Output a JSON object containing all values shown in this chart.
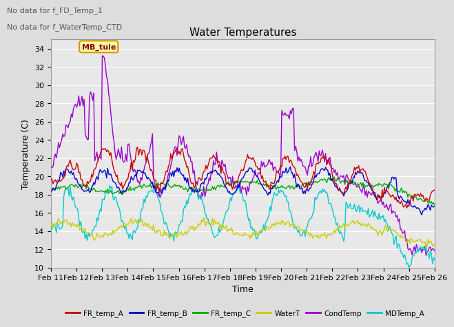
{
  "title": "Water Temperatures",
  "xlabel": "Time",
  "ylabel": "Temperature (C)",
  "annotations": [
    "No data for f_FD_Temp_1",
    "No data for f_WaterTemp_CTD"
  ],
  "annotation_box": "MB_tule",
  "ylim": [
    10,
    35
  ],
  "yticks": [
    10,
    12,
    14,
    16,
    18,
    20,
    22,
    24,
    26,
    28,
    30,
    32,
    34
  ],
  "xtick_labels": [
    "Feb 11",
    "Feb 12",
    "Feb 13",
    "Feb 14",
    "Feb 15",
    "Feb 16",
    "Feb 17",
    "Feb 18",
    "Feb 19",
    "Feb 20",
    "Feb 21",
    "Feb 22",
    "Feb 23",
    "Feb 24",
    "Feb 25",
    "Feb 26"
  ],
  "legend": [
    {
      "label": "FR_temp_A",
      "color": "#cc0000"
    },
    {
      "label": "FR_temp_B",
      "color": "#0000cc"
    },
    {
      "label": "FR_temp_C",
      "color": "#00aa00"
    },
    {
      "label": "WaterT",
      "color": "#cccc00"
    },
    {
      "label": "CondTemp",
      "color": "#9900cc"
    },
    {
      "label": "MDTemp_A",
      "color": "#00cccc"
    }
  ],
  "background_color": "#dddddd",
  "plot_bg": "#e8e8e8",
  "grid_color": "#ffffff",
  "title_fontsize": 11,
  "label_fontsize": 9,
  "tick_fontsize": 8
}
